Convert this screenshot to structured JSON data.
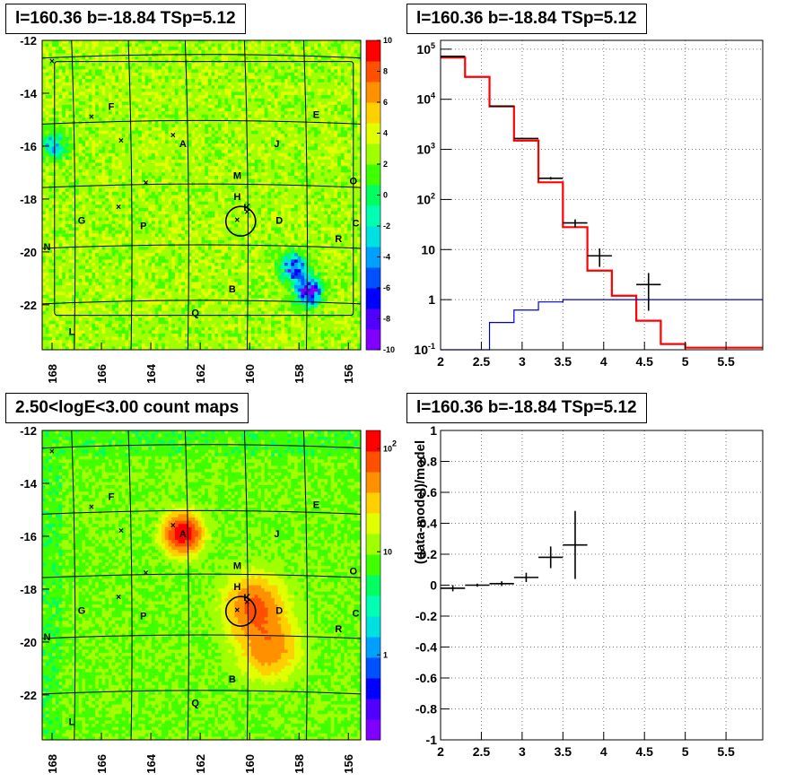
{
  "titles": {
    "top_left": "l=160.36 b=-18.84 TSp=5.12",
    "top_right": "l=160.36 b=-18.84 TSp=5.12",
    "bottom_left": "2.50<logE<3.00 count maps",
    "bottom_right": "l=160.36 b=-18.84 TSp=5.12"
  },
  "chart_data": [
    {
      "id": "residual-map",
      "type": "heatmap",
      "title": "l=160.36 b=-18.84 TSp=5.12",
      "x_ticks": [
        "168",
        "166",
        "164",
        "162",
        "160",
        "158",
        "156"
      ],
      "y_ticks": [
        "-12",
        "-14",
        "-16",
        "-18",
        "-20",
        "-22"
      ],
      "xlim": [
        168.4,
        155.5
      ],
      "ylim": [
        -23.7,
        -12
      ],
      "colorbar": {
        "min": -10,
        "max": 10,
        "ticks": [
          "10",
          "8",
          "6",
          "4",
          "2",
          "0",
          "-2",
          "-4",
          "-6",
          "-8",
          "-10"
        ]
      },
      "source_labels": [
        {
          "label": "F",
          "l": 165.6,
          "b": -14.5
        },
        {
          "label": "E",
          "l": 157.3,
          "b": -14.8
        },
        {
          "label": "A",
          "l": 162.7,
          "b": -15.9
        },
        {
          "label": "J",
          "l": 158.9,
          "b": -15.9
        },
        {
          "label": "M",
          "l": 160.5,
          "b": -17.1
        },
        {
          "label": "O",
          "l": 155.8,
          "b": -17.3
        },
        {
          "label": "H",
          "l": 160.5,
          "b": -17.9
        },
        {
          "label": "K",
          "l": 160.1,
          "b": -18.3
        },
        {
          "label": "G",
          "l": 166.8,
          "b": -18.8
        },
        {
          "label": "D",
          "l": 158.8,
          "b": -18.8
        },
        {
          "label": "C",
          "l": 155.7,
          "b": -18.9
        },
        {
          "label": "P",
          "l": 164.3,
          "b": -19.0
        },
        {
          "label": "R",
          "l": 156.4,
          "b": -19.5
        },
        {
          "label": "N",
          "l": 168.2,
          "b": -19.8
        },
        {
          "label": "B",
          "l": 160.7,
          "b": -21.4
        },
        {
          "label": "Q",
          "l": 162.2,
          "b": -22.3
        },
        {
          "label": "L",
          "l": 167.2,
          "b": -23.0
        }
      ],
      "source_markers": [
        {
          "l": 168.0,
          "b": -12.8
        },
        {
          "l": 166.4,
          "b": -14.9
        },
        {
          "l": 165.2,
          "b": -15.8
        },
        {
          "l": 163.1,
          "b": -15.6
        },
        {
          "l": 164.2,
          "b": -17.4
        },
        {
          "l": 165.3,
          "b": -18.3
        },
        {
          "l": 160.5,
          "b": -18.8
        },
        {
          "l": 160.1,
          "b": -18.5
        }
      ],
      "circle": {
        "l": 160.36,
        "b": -18.84,
        "r_deg": 0.6
      },
      "features": [
        {
          "l": 167.9,
          "b": -16.0,
          "value": -4
        },
        {
          "l": 158.2,
          "b": -20.6,
          "value": -8
        },
        {
          "l": 157.6,
          "b": -21.5,
          "value": -10
        }
      ]
    },
    {
      "id": "spectrum",
      "type": "line",
      "title": "l=160.36 b=-18.84 TSp=5.12",
      "x_ticks": [
        "2",
        "2.5",
        "3",
        "3.5",
        "4",
        "4.5",
        "5",
        "5.5"
      ],
      "xlim": [
        2,
        5.95
      ],
      "y_scale": "log",
      "ylim": [
        0.1,
        150000
      ],
      "y_ticks": [
        "10^5",
        "10^4",
        "10^3",
        "10^2",
        "10",
        "1",
        "10^-1"
      ],
      "data_points": [
        {
          "x": 2.15,
          "xerr": 0.15,
          "y": 72000,
          "yerr": 270
        },
        {
          "x": 2.75,
          "xerr": 0.15,
          "y": 7300,
          "yerr": 85
        },
        {
          "x": 3.05,
          "xerr": 0.15,
          "y": 1650,
          "yerr": 40
        },
        {
          "x": 3.35,
          "xerr": 0.15,
          "y": 265,
          "yerr": 16
        },
        {
          "x": 3.65,
          "xerr": 0.15,
          "y": 34,
          "yerr": 6
        },
        {
          "x": 3.95,
          "xerr": 0.15,
          "y": 7.5,
          "yerr": 3
        },
        {
          "x": 4.55,
          "xerr": 0.15,
          "y": 2,
          "yerr": 1.4
        }
      ],
      "series": [
        {
          "name": "total model",
          "color": "#ff0000",
          "bin_edges": [
            2,
            2.3,
            2.6,
            2.9,
            3.2,
            3.5,
            3.8,
            4.1,
            4.4,
            4.7,
            5.0,
            5.95
          ],
          "values": [
            68000,
            28000,
            7200,
            1500,
            220,
            28,
            3.8,
            1.2,
            0.38,
            0.13,
            0.11
          ]
        },
        {
          "name": "source",
          "color": "#0000cc",
          "bin_edges": [
            2,
            2.3,
            2.6,
            2.9,
            3.2,
            3.5,
            5.95
          ],
          "values": [
            0.03,
            0.06,
            0.35,
            0.62,
            0.9,
            1.0
          ]
        }
      ]
    },
    {
      "id": "count-map",
      "type": "heatmap",
      "title": "2.50<logE<3.00 count maps",
      "x_ticks": [
        "168",
        "166",
        "164",
        "162",
        "160",
        "158",
        "156"
      ],
      "y_ticks": [
        "-12",
        "-14",
        "-16",
        "-18",
        "-20",
        "-22"
      ],
      "xlim": [
        168.4,
        155.5
      ],
      "ylim": [
        -23.7,
        -12
      ],
      "colorbar": {
        "scale": "log",
        "min": 0.15,
        "max": 150,
        "ticks": [
          "10^2",
          "10",
          "1"
        ]
      },
      "source_labels": [
        {
          "label": "F",
          "l": 165.6,
          "b": -14.5
        },
        {
          "label": "E",
          "l": 157.3,
          "b": -14.8
        },
        {
          "label": "A",
          "l": 162.7,
          "b": -15.9
        },
        {
          "label": "J",
          "l": 158.9,
          "b": -15.9
        },
        {
          "label": "M",
          "l": 160.5,
          "b": -17.1
        },
        {
          "label": "O",
          "l": 155.8,
          "b": -17.3
        },
        {
          "label": "H",
          "l": 160.5,
          "b": -17.9
        },
        {
          "label": "K",
          "l": 160.1,
          "b": -18.3
        },
        {
          "label": "G",
          "l": 166.8,
          "b": -18.8
        },
        {
          "label": "D",
          "l": 158.8,
          "b": -18.8
        },
        {
          "label": "C",
          "l": 155.7,
          "b": -18.9
        },
        {
          "label": "P",
          "l": 164.3,
          "b": -19.0
        },
        {
          "label": "R",
          "l": 156.4,
          "b": -19.5
        },
        {
          "label": "N",
          "l": 168.2,
          "b": -19.8
        },
        {
          "label": "B",
          "l": 160.7,
          "b": -21.4
        },
        {
          "label": "Q",
          "l": 162.2,
          "b": -22.3
        },
        {
          "label": "L",
          "l": 167.2,
          "b": -23.0
        }
      ],
      "source_markers": [
        {
          "l": 168.0,
          "b": -12.8
        },
        {
          "l": 166.4,
          "b": -14.9
        },
        {
          "l": 165.2,
          "b": -15.8
        },
        {
          "l": 163.1,
          "b": -15.6
        },
        {
          "l": 164.2,
          "b": -17.4
        },
        {
          "l": 165.3,
          "b": -18.3
        },
        {
          "l": 160.5,
          "b": -18.8
        },
        {
          "l": 160.1,
          "b": -18.5
        }
      ],
      "circle": {
        "l": 160.36,
        "b": -18.84,
        "r_deg": 0.6
      },
      "features": [
        {
          "l": 162.7,
          "b": -15.9,
          "value": 120
        },
        {
          "l": 159.8,
          "b": -18.7,
          "value": 60
        },
        {
          "l": 159.2,
          "b": -20.2,
          "value": 45
        }
      ]
    },
    {
      "id": "residual-ratio",
      "type": "scatter",
      "title": "l=160.36 b=-18.84 TSp=5.12",
      "ylabel": "(data-model)/model",
      "x_ticks": [
        "2",
        "2.5",
        "3",
        "3.5",
        "4",
        "4.5",
        "5",
        "5.5"
      ],
      "y_ticks": [
        "1",
        "0.8",
        "0.6",
        "0.4",
        "0.2",
        "0",
        "-0.2",
        "-0.4",
        "-0.6",
        "-0.8",
        "-1"
      ],
      "xlim": [
        2,
        5.95
      ],
      "ylim": [
        -1,
        1
      ],
      "points": [
        {
          "x": 2.15,
          "xerr": 0.15,
          "y": -0.02,
          "yerr": 0.02
        },
        {
          "x": 2.45,
          "xerr": 0.15,
          "y": 0.0,
          "yerr": 0.01
        },
        {
          "x": 2.75,
          "xerr": 0.15,
          "y": 0.01,
          "yerr": 0.015
        },
        {
          "x": 3.05,
          "xerr": 0.15,
          "y": 0.05,
          "yerr": 0.03
        },
        {
          "x": 3.35,
          "xerr": 0.15,
          "y": 0.18,
          "yerr": 0.07
        },
        {
          "x": 3.65,
          "xerr": 0.15,
          "y": 0.26,
          "yerr": 0.22
        }
      ]
    }
  ]
}
